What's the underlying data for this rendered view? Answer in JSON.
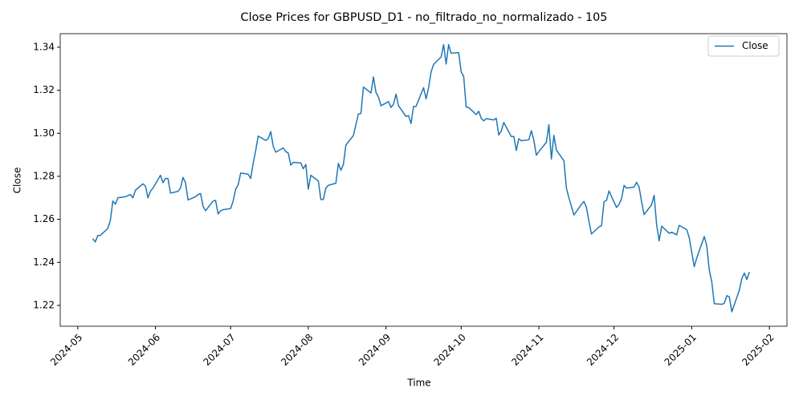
{
  "chart_data": {
    "type": "line",
    "title": "Close Prices for GBPUSD_D1 - no_filtrado_no_normalizado - 105",
    "x_label": "Time",
    "y_label": "Close",
    "legend": "upper right",
    "xlim": [
      "2024-04-24",
      "2025-02-08"
    ],
    "xticks": [
      "2024-05",
      "2024-06",
      "2024-07",
      "2024-08",
      "2024-09",
      "2024-10",
      "2024-11",
      "2024-12",
      "2025-01",
      "2025-02"
    ],
    "ylim": [
      1.2103,
      1.3463
    ],
    "yticks": [
      1.22,
      1.24,
      1.26,
      1.28,
      {
        "value": 1.3,
        "label": "1.30"
      },
      1.32,
      1.34
    ],
    "x": [
      "2024-05-07",
      "2024-05-08",
      "2024-05-09",
      "2024-05-10",
      "2024-05-13",
      "2024-05-14",
      "2024-05-15",
      "2024-05-16",
      "2024-05-17",
      "2024-05-20",
      "2024-05-21",
      "2024-05-22",
      "2024-05-23",
      "2024-05-24",
      "2024-05-27",
      "2024-05-28",
      "2024-05-29",
      "2024-05-30",
      "2024-05-31",
      "2024-06-03",
      "2024-06-04",
      "2024-06-05",
      "2024-06-06",
      "2024-06-07",
      "2024-06-10",
      "2024-06-11",
      "2024-06-12",
      "2024-06-13",
      "2024-06-14",
      "2024-06-17",
      "2024-06-18",
      "2024-06-19",
      "2024-06-20",
      "2024-06-21",
      "2024-06-24",
      "2024-06-25",
      "2024-06-26",
      "2024-06-27",
      "2024-06-28",
      "2024-07-01",
      "2024-07-02",
      "2024-07-03",
      "2024-07-04",
      "2024-07-05",
      "2024-07-08",
      "2024-07-09",
      "2024-07-10",
      "2024-07-11",
      "2024-07-12",
      "2024-07-15",
      "2024-07-16",
      "2024-07-17",
      "2024-07-18",
      "2024-07-19",
      "2024-07-22",
      "2024-07-23",
      "2024-07-24",
      "2024-07-25",
      "2024-07-26",
      "2024-07-29",
      "2024-07-30",
      "2024-07-31",
      "2024-08-01",
      "2024-08-02",
      "2024-08-05",
      "2024-08-06",
      "2024-08-07",
      "2024-08-08",
      "2024-08-09",
      "2024-08-12",
      "2024-08-13",
      "2024-08-14",
      "2024-08-15",
      "2024-08-16",
      "2024-08-19",
      "2024-08-20",
      "2024-08-21",
      "2024-08-22",
      "2024-08-23",
      "2024-08-26",
      "2024-08-27",
      "2024-08-28",
      "2024-08-29",
      "2024-08-30",
      "2024-09-02",
      "2024-09-03",
      "2024-09-04",
      "2024-09-05",
      "2024-09-06",
      "2024-09-09",
      "2024-09-10",
      "2024-09-11",
      "2024-09-12",
      "2024-09-13",
      "2024-09-16",
      "2024-09-17",
      "2024-09-18",
      "2024-09-19",
      "2024-09-20",
      "2024-09-23",
      "2024-09-24",
      "2024-09-25",
      "2024-09-26",
      "2024-09-27",
      "2024-09-30",
      "2024-10-01",
      "2024-10-02",
      "2024-10-03",
      "2024-10-04",
      "2024-10-07",
      "2024-10-08",
      "2024-10-09",
      "2024-10-10",
      "2024-10-11",
      "2024-10-14",
      "2024-10-15",
      "2024-10-16",
      "2024-10-17",
      "2024-10-18",
      "2024-10-21",
      "2024-10-22",
      "2024-10-23",
      "2024-10-24",
      "2024-10-25",
      "2024-10-28",
      "2024-10-29",
      "2024-10-30",
      "2024-10-31",
      "2024-11-01",
      "2024-11-04",
      "2024-11-05",
      "2024-11-06",
      "2024-11-07",
      "2024-11-08",
      "2024-11-11",
      "2024-11-12",
      "2024-11-13",
      "2024-11-14",
      "2024-11-15",
      "2024-11-18",
      "2024-11-19",
      "2024-11-20",
      "2024-11-21",
      "2024-11-22",
      "2024-11-25",
      "2024-11-26",
      "2024-11-27",
      "2024-11-28",
      "2024-11-29",
      "2024-12-02",
      "2024-12-03",
      "2024-12-04",
      "2024-12-05",
      "2024-12-06",
      "2024-12-09",
      "2024-12-10",
      "2024-12-11",
      "2024-12-12",
      "2024-12-13",
      "2024-12-16",
      "2024-12-17",
      "2024-12-18",
      "2024-12-19",
      "2024-12-20",
      "2024-12-23",
      "2024-12-24",
      "2024-12-26",
      "2024-12-27",
      "2024-12-30",
      "2024-12-31",
      "2025-01-02",
      "2025-01-03",
      "2025-01-06",
      "2025-01-07",
      "2025-01-08",
      "2025-01-09",
      "2025-01-10",
      "2025-01-13",
      "2025-01-14",
      "2025-01-15",
      "2025-01-16",
      "2025-01-17",
      "2025-01-20",
      "2025-01-21",
      "2025-01-22",
      "2025-01-23",
      "2025-01-24"
    ],
    "series": [
      {
        "name": "Close",
        "color": "#1f77b4",
        "values": [
          1.251,
          1.2495,
          1.2525,
          1.2525,
          1.2558,
          1.2595,
          1.2685,
          1.267,
          1.27,
          1.2705,
          1.271,
          1.2715,
          1.27,
          1.2735,
          1.2765,
          1.2755,
          1.27,
          1.273,
          1.2745,
          1.2805,
          1.277,
          1.279,
          1.279,
          1.2722,
          1.273,
          1.2745,
          1.2795,
          1.277,
          1.269,
          1.2705,
          1.2715,
          1.272,
          1.266,
          1.264,
          1.2685,
          1.2688,
          1.2625,
          1.264,
          1.2645,
          1.265,
          1.2685,
          1.274,
          1.276,
          1.2815,
          1.281,
          1.279,
          1.286,
          1.292,
          1.2987,
          1.2967,
          1.2975,
          1.3008,
          1.294,
          1.2912,
          1.2932,
          1.2915,
          1.2908,
          1.2852,
          1.2865,
          1.2862,
          1.2835,
          1.2855,
          1.274,
          1.2805,
          1.2778,
          1.2692,
          1.2692,
          1.2745,
          1.2758,
          1.2768,
          1.286,
          1.2828,
          1.2855,
          1.2945,
          1.299,
          1.304,
          1.309,
          1.3092,
          1.3215,
          1.3187,
          1.3262,
          1.319,
          1.3168,
          1.3128,
          1.3147,
          1.312,
          1.3135,
          1.3182,
          1.3128,
          1.3078,
          1.3082,
          1.3045,
          1.3125,
          1.3125,
          1.3212,
          1.316,
          1.3212,
          1.3285,
          1.332,
          1.3355,
          1.3412,
          1.3322,
          1.3412,
          1.3372,
          1.3375,
          1.3285,
          1.3265,
          1.3122,
          1.312,
          1.3087,
          1.3102,
          1.307,
          1.3058,
          1.3068,
          1.3062,
          1.307,
          1.2992,
          1.301,
          1.305,
          1.2985,
          1.2985,
          1.292,
          1.2975,
          1.2965,
          1.297,
          1.3012,
          1.2968,
          1.2898,
          1.2915,
          1.2958,
          1.304,
          1.288,
          1.299,
          1.2922,
          1.2872,
          1.2745,
          1.27,
          1.266,
          1.262,
          1.267,
          1.2683,
          1.2655,
          1.259,
          1.2532,
          1.2565,
          1.257,
          1.2682,
          1.2688,
          1.2732,
          1.2655,
          1.267,
          1.2695,
          1.2758,
          1.2745,
          1.275,
          1.2772,
          1.275,
          1.2682,
          1.2622,
          1.2668,
          1.2712,
          1.2575,
          1.25,
          1.2568,
          1.2535,
          1.254,
          1.2528,
          1.2572,
          1.2552,
          1.2515,
          1.238,
          1.242,
          1.252,
          1.2478,
          1.2365,
          1.231,
          1.2208,
          1.2205,
          1.221,
          1.2245,
          1.224,
          1.217,
          1.227,
          1.2325,
          1.235,
          1.232,
          1.2355
        ]
      }
    ]
  }
}
